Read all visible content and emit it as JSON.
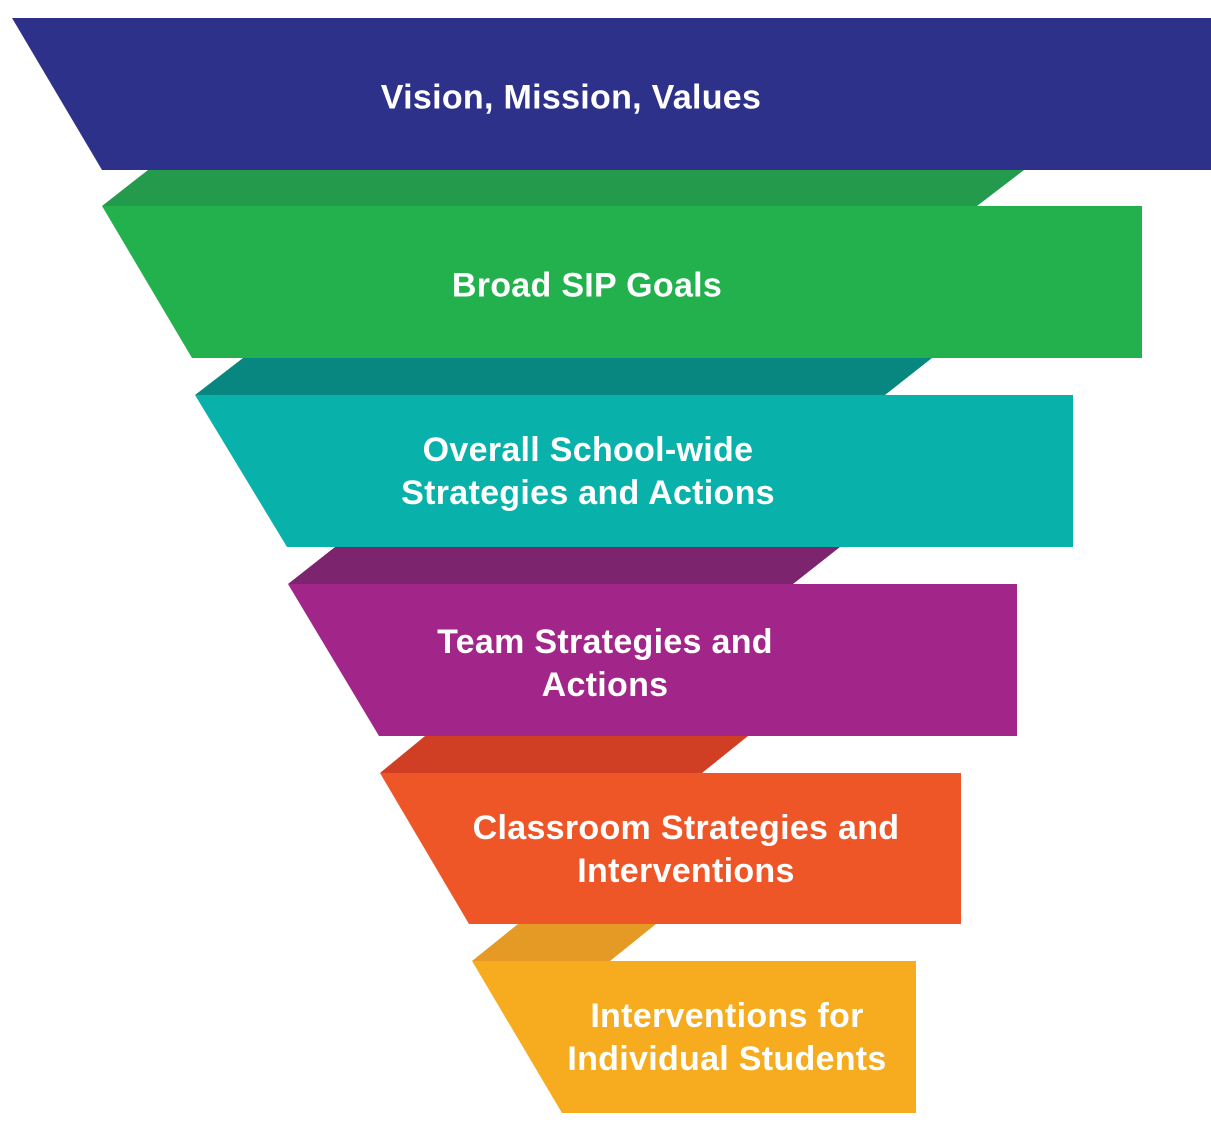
{
  "funnel": {
    "levels": [
      {
        "lines": [
          "Vision, Mission, Values"
        ],
        "color": "#2E318A"
      },
      {
        "lines": [
          "Broad SIP Goals"
        ],
        "color": "#22B14C",
        "fold_color": "#249A4D"
      },
      {
        "lines": [
          "Overall School-wide",
          "Strategies and Actions"
        ],
        "color": "#08B2AB",
        "fold_color": "#078780"
      },
      {
        "lines": [
          "Team Strategies and",
          "Actions"
        ],
        "color": "#A2258A",
        "fold_color": "#7C246E"
      },
      {
        "lines": [
          "Classroom Strategies and",
          "Interventions"
        ],
        "color": "#EE5628",
        "fold_color": "#D03E24"
      },
      {
        "lines": [
          "Interventions for",
          "Individual Students"
        ],
        "color": "#F6AC1E",
        "fold_color": "#E59A26"
      }
    ]
  }
}
